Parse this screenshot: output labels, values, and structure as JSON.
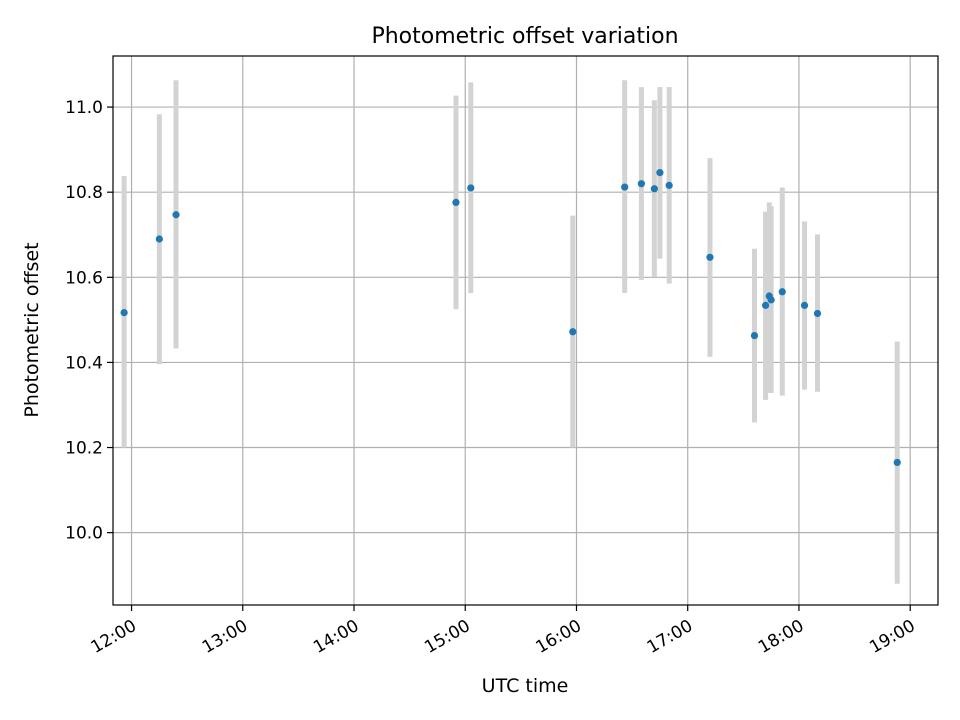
{
  "chart_data": {
    "type": "scatter",
    "title": "Photometric offset variation",
    "xlabel": "UTC time",
    "ylabel": "Photometric offset",
    "x_tick_labels": [
      "12:00",
      "13:00",
      "14:00",
      "15:00",
      "16:00",
      "17:00",
      "18:00",
      "19:00"
    ],
    "y_tick_labels": [
      "10.0",
      "10.2",
      "10.4",
      "10.6",
      "10.8",
      "11.0"
    ],
    "xlim": [
      "11:50",
      "19:15"
    ],
    "ylim": [
      9.83,
      11.12
    ],
    "grid": true,
    "marker_color": "#1f77b4",
    "errorbar_color": "#d3d3d3",
    "points": [
      {
        "t": "11:56",
        "y": 10.517,
        "lo": 10.2,
        "hi": 10.838
      },
      {
        "t": "12:15",
        "y": 10.69,
        "lo": 10.396,
        "hi": 10.983
      },
      {
        "t": "12:24",
        "y": 10.747,
        "lo": 10.433,
        "hi": 11.063
      },
      {
        "t": "14:55",
        "y": 10.776,
        "lo": 10.525,
        "hi": 11.027
      },
      {
        "t": "15:03",
        "y": 10.81,
        "lo": 10.563,
        "hi": 11.058
      },
      {
        "t": "15:58",
        "y": 10.472,
        "lo": 10.2,
        "hi": 10.745
      },
      {
        "t": "16:26",
        "y": 10.812,
        "lo": 10.563,
        "hi": 11.063
      },
      {
        "t": "16:35",
        "y": 10.82,
        "lo": 10.594,
        "hi": 11.047
      },
      {
        "t": "16:42",
        "y": 10.808,
        "lo": 10.601,
        "hi": 11.016
      },
      {
        "t": "16:45",
        "y": 10.846,
        "lo": 10.644,
        "hi": 11.047
      },
      {
        "t": "16:50",
        "y": 10.816,
        "lo": 10.585,
        "hi": 11.047
      },
      {
        "t": "17:12",
        "y": 10.647,
        "lo": 10.413,
        "hi": 10.88
      },
      {
        "t": "17:36",
        "y": 10.463,
        "lo": 10.259,
        "hi": 10.667
      },
      {
        "t": "17:42",
        "y": 10.534,
        "lo": 10.312,
        "hi": 10.754
      },
      {
        "t": "17:44",
        "y": 10.556,
        "lo": 10.328,
        "hi": 10.776
      },
      {
        "t": "17:45",
        "y": 10.547,
        "lo": 10.328,
        "hi": 10.767
      },
      {
        "t": "17:51",
        "y": 10.566,
        "lo": 10.322,
        "hi": 10.811
      },
      {
        "t": "18:03",
        "y": 10.534,
        "lo": 10.336,
        "hi": 10.731
      },
      {
        "t": "18:10",
        "y": 10.515,
        "lo": 10.331,
        "hi": 10.701
      },
      {
        "t": "18:53",
        "y": 10.165,
        "lo": 9.88,
        "hi": 10.449
      }
    ]
  }
}
